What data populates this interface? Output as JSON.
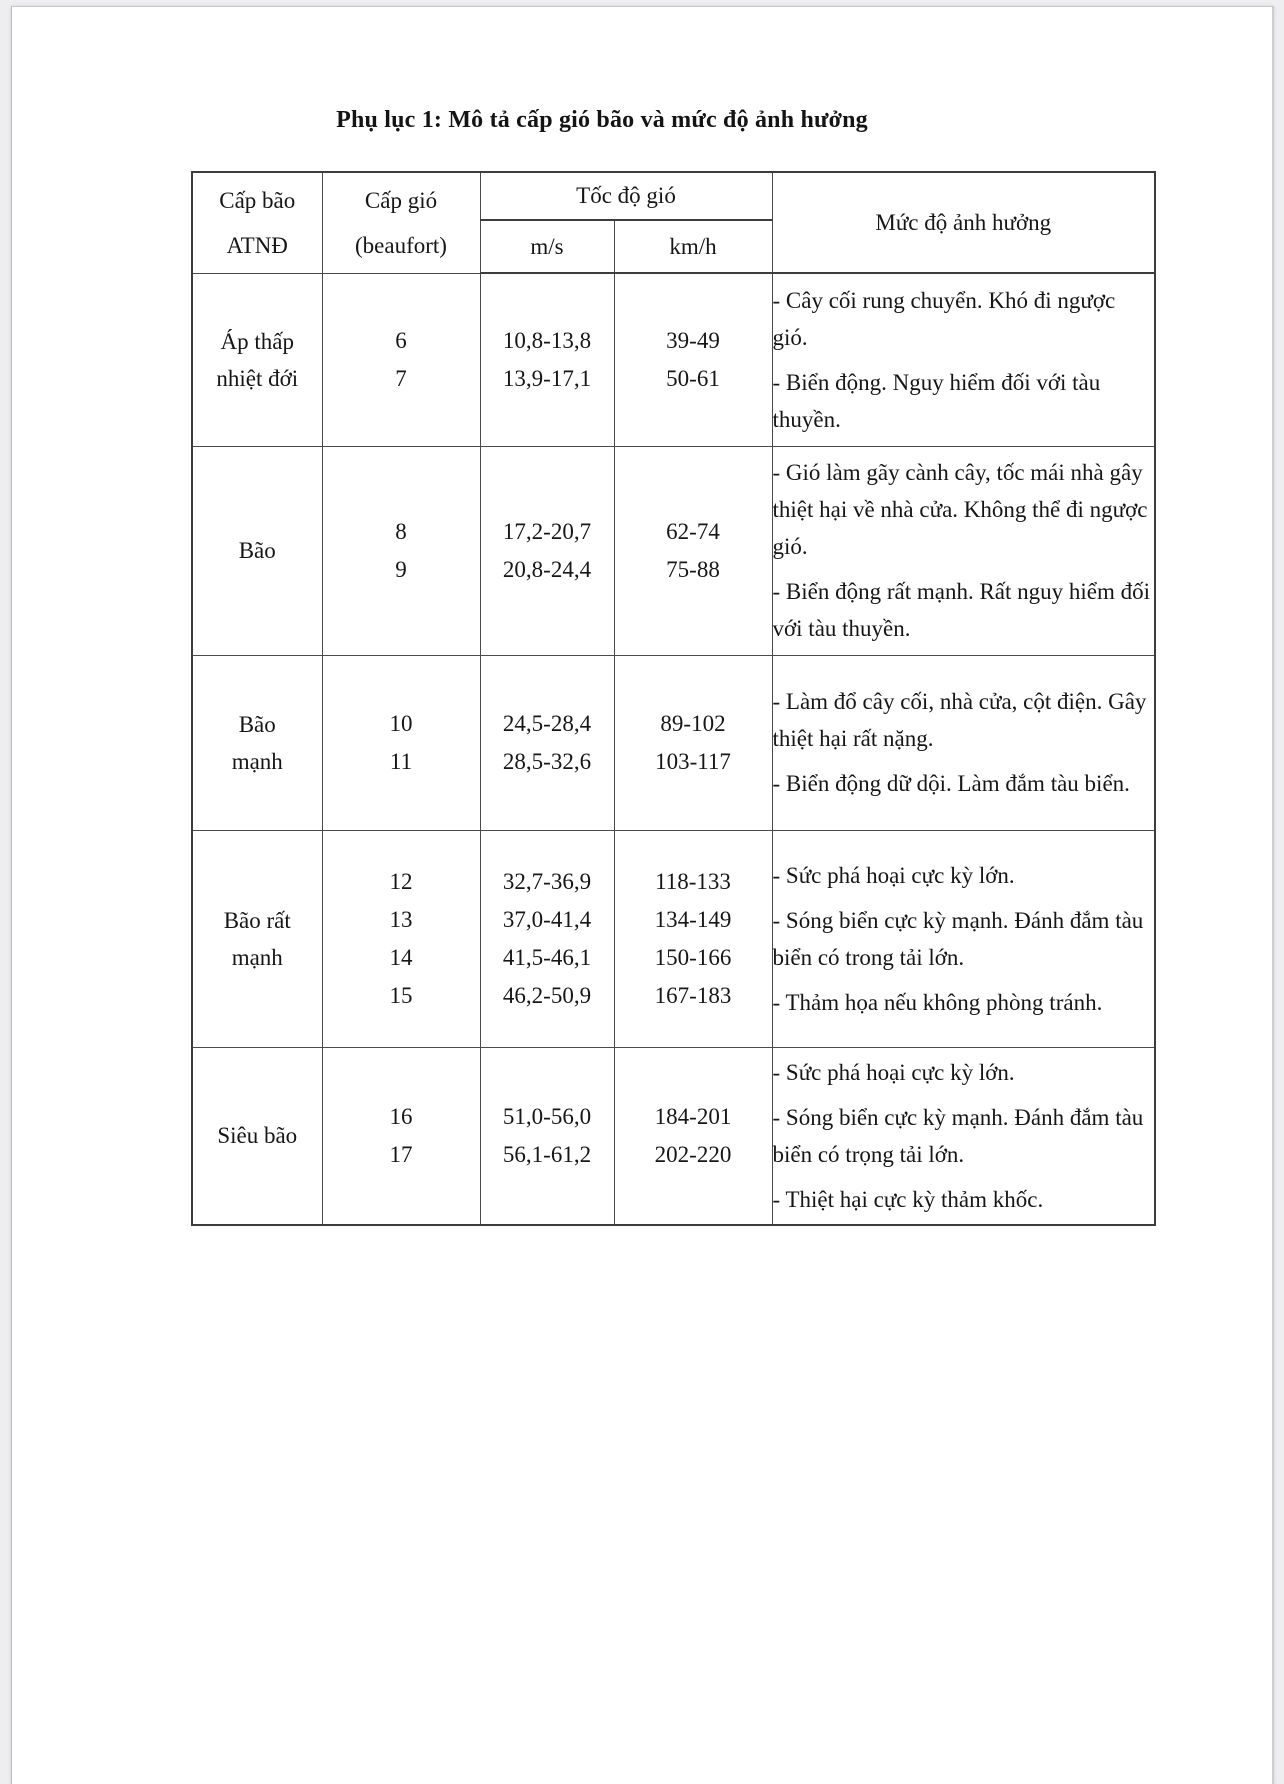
{
  "page": {
    "title": "Phụ lục 1: Mô tả cấp gió bão và mức độ ảnh hưởng"
  },
  "table": {
    "headers": {
      "storm_level_line1": "Cấp bão",
      "storm_level_line2": "ATNĐ",
      "wind_level_line1": "Cấp gió",
      "wind_level_line2": "(beaufort)",
      "wind_speed": "Tốc độ gió",
      "unit_ms": "m/s",
      "unit_kmh": "km/h",
      "impact": "Mức độ ảnh hưởng"
    },
    "rows": [
      {
        "category_lines": [
          "Áp thấp",
          "nhiệt đới"
        ],
        "levels": [
          "6",
          "7"
        ],
        "ms": [
          "10,8-13,8",
          "13,9-17,1"
        ],
        "kmh": [
          "39-49",
          "50-61"
        ],
        "impacts": [
          "- Cây cối rung chuyển. Khó đi ngược gió.",
          "- Biển động. Nguy hiểm đối với tàu thuyền."
        ]
      },
      {
        "category_lines": [
          "Bão"
        ],
        "levels": [
          "8",
          "9"
        ],
        "ms": [
          "17,2-20,7",
          "20,8-24,4"
        ],
        "kmh": [
          "62-74",
          "75-88"
        ],
        "impacts": [
          "- Gió làm gãy cành cây, tốc mái nhà gây thiệt hại về nhà cửa. Không thể đi ngược gió.",
          "- Biển động rất mạnh. Rất nguy hiểm đối với tàu thuyền."
        ]
      },
      {
        "category_lines": [
          "Bão",
          "mạnh"
        ],
        "levels": [
          "10",
          "11"
        ],
        "ms": [
          "24,5-28,4",
          "28,5-32,6"
        ],
        "kmh": [
          "89-102",
          "103-117"
        ],
        "impacts": [
          "- Làm đổ cây cối, nhà cửa, cột điện. Gây thiệt hại rất nặng.",
          "- Biển động dữ dội. Làm đắm tàu biển."
        ]
      },
      {
        "category_lines": [
          "Bão rất",
          "mạnh"
        ],
        "levels": [
          "12",
          "13",
          "14",
          "15"
        ],
        "ms": [
          "32,7-36,9",
          "37,0-41,4",
          "41,5-46,1",
          "46,2-50,9"
        ],
        "kmh": [
          "118-133",
          "134-149",
          "150-166",
          "167-183"
        ],
        "impacts": [
          "- Sức phá hoại cực kỳ lớn.",
          "- Sóng biển cực kỳ mạnh. Đánh đắm tàu biển có trong tải lớn.",
          "- Thảm họa nếu không phòng tránh."
        ]
      },
      {
        "category_lines": [
          "Siêu bão"
        ],
        "levels": [
          "16",
          "17"
        ],
        "ms": [
          "51,0-56,0",
          "56,1-61,2"
        ],
        "kmh": [
          "184-201",
          "202-220"
        ],
        "impacts": [
          "- Sức phá hoại cực kỳ lớn.",
          "- Sóng biển cực kỳ mạnh. Đánh đắm tàu biển có trọng tải lớn.",
          "- Thiệt hại cực kỳ thảm khốc."
        ]
      }
    ]
  }
}
